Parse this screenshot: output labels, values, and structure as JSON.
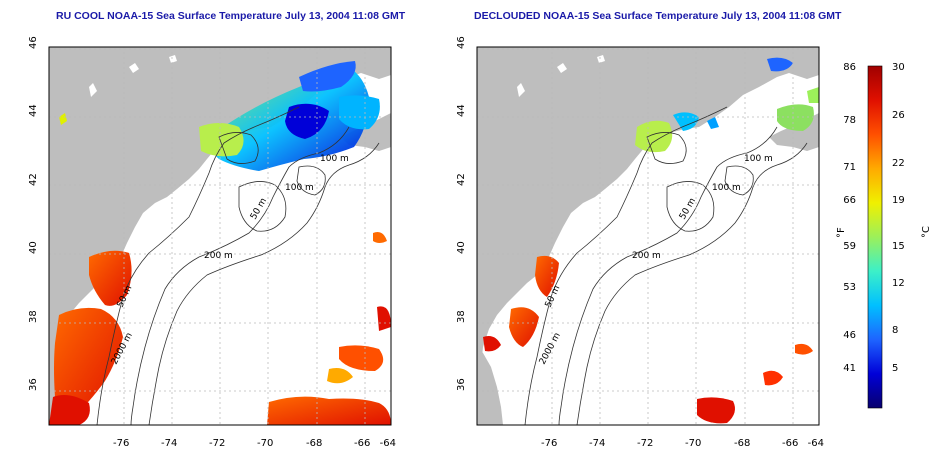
{
  "titles": {
    "left": "RU COOL NOAA-15 Sea Surface Temperature July 13, 2004 11:08 GMT",
    "right": "DECLOUDED NOAA-15 Sea Surface Temperature July 13, 2004 11:08 GMT"
  },
  "axes": {
    "x_ticks": [
      "-76",
      "-74",
      "-72",
      "-70",
      "-68",
      "-66",
      "-64"
    ],
    "y_ticks": [
      "46",
      "44",
      "42",
      "40",
      "38",
      "36"
    ]
  },
  "contours": {
    "left": [
      "100 m",
      "100 m",
      "50 m",
      "200 m",
      "50 m",
      "2000 m"
    ],
    "right": [
      "100 m",
      "100 m",
      "50 m",
      "200 m",
      "50 m",
      "2000 m"
    ]
  },
  "colorbar": {
    "f_ticks": [
      "86",
      "78",
      "71",
      "66",
      "59",
      "53",
      "46",
      "41"
    ],
    "c_ticks": [
      "30",
      "26",
      "22",
      "19",
      "15",
      "12",
      "8",
      "5"
    ],
    "f_label": "°F",
    "c_label": "°C",
    "colors": [
      "#08006e",
      "#0000d8",
      "#1e64ff",
      "#00c0ff",
      "#3cf0c8",
      "#9cf05a",
      "#f0f000",
      "#ffaa00",
      "#ff5000",
      "#e01000",
      "#a00000"
    ]
  },
  "colors": {
    "land": "#bebebe",
    "grid": "#bbbbbb",
    "title": "#1a1aa8"
  }
}
